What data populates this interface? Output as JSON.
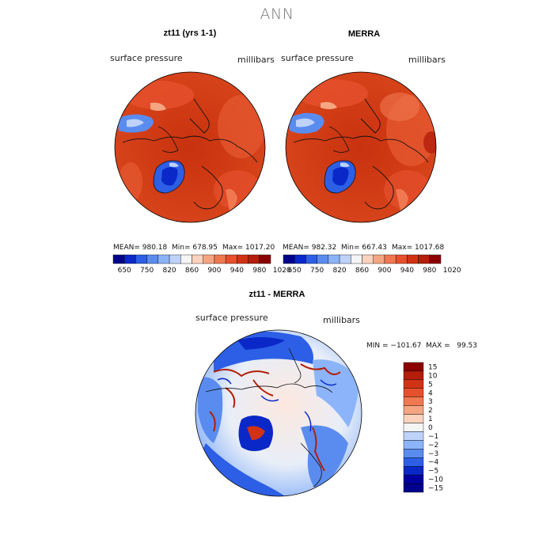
{
  "page": {
    "title": "ANN"
  },
  "panels": [
    {
      "title": "zt11 (yrs 1-1)",
      "variable_label": "surface pressure",
      "units_label": "millibars",
      "stats": {
        "mean_label": "MEAN= 980.18",
        "min_label": "Min= 678.95",
        "max_label": "Max= 1017.20"
      }
    },
    {
      "title": "MERRA",
      "variable_label": "surface pressure",
      "units_label": "millibars",
      "stats": {
        "mean_label": "MEAN= 982.32",
        "min_label": "Min= 667.43",
        "max_label": "Max= 1017.68"
      }
    },
    {
      "title": "zt11 - MERRA",
      "variable_label": "surface pressure",
      "units_label": "millibars",
      "stats": {
        "minmax_label": "MIN = −101.67  MAX =   99.53"
      }
    }
  ],
  "chart_data": [
    {
      "type": "heatmap",
      "title": "zt11 (yrs 1-1)",
      "projection": "north polar stereographic",
      "variable": "surface pressure",
      "units": "millibars",
      "mean": 980.18,
      "min": 678.95,
      "max": 1017.2,
      "colorbar": {
        "orientation": "horizontal",
        "tick_labels": [
          "650",
          "750",
          "820",
          "860",
          "900",
          "940",
          "980",
          "1020"
        ],
        "colors": [
          "#00008c",
          "#0a28c8",
          "#2d5fe6",
          "#5a8cf0",
          "#8cb4fa",
          "#bed2fa",
          "#f5f5f5",
          "#fad2be",
          "#f5a582",
          "#f07850",
          "#e6502d",
          "#d23214",
          "#b41e0a",
          "#8c0000"
        ]
      }
    },
    {
      "type": "heatmap",
      "title": "MERRA",
      "projection": "north polar stereographic",
      "variable": "surface pressure",
      "units": "millibars",
      "mean": 982.32,
      "min": 667.43,
      "max": 1017.68,
      "colorbar": {
        "orientation": "horizontal",
        "tick_labels": [
          "650",
          "750",
          "820",
          "860",
          "900",
          "940",
          "980",
          "1020"
        ],
        "colors": [
          "#00008c",
          "#0a28c8",
          "#2d5fe6",
          "#5a8cf0",
          "#8cb4fa",
          "#bed2fa",
          "#f5f5f5",
          "#fad2be",
          "#f5a582",
          "#f07850",
          "#e6502d",
          "#d23214",
          "#b41e0a",
          "#8c0000"
        ]
      }
    },
    {
      "type": "heatmap",
      "title": "zt11 - MERRA",
      "projection": "north polar stereographic",
      "variable": "surface pressure",
      "units": "millibars",
      "min": -101.67,
      "max": 99.53,
      "colorbar": {
        "orientation": "vertical",
        "tick_labels": [
          "15",
          "10",
          "5",
          "4",
          "3",
          "2",
          "1",
          "0",
          "−1",
          "−2",
          "−3",
          "−4",
          "−5",
          "−10",
          "−15"
        ],
        "colors": [
          "#8c0000",
          "#b41e0a",
          "#d23214",
          "#e6502d",
          "#f07850",
          "#f5a582",
          "#fad2be",
          "#f5f5f5",
          "#bed2fa",
          "#8cb4fa",
          "#5a8cf0",
          "#2d5fe6",
          "#0a28c8",
          "#0000a0",
          "#00008c"
        ]
      }
    }
  ]
}
